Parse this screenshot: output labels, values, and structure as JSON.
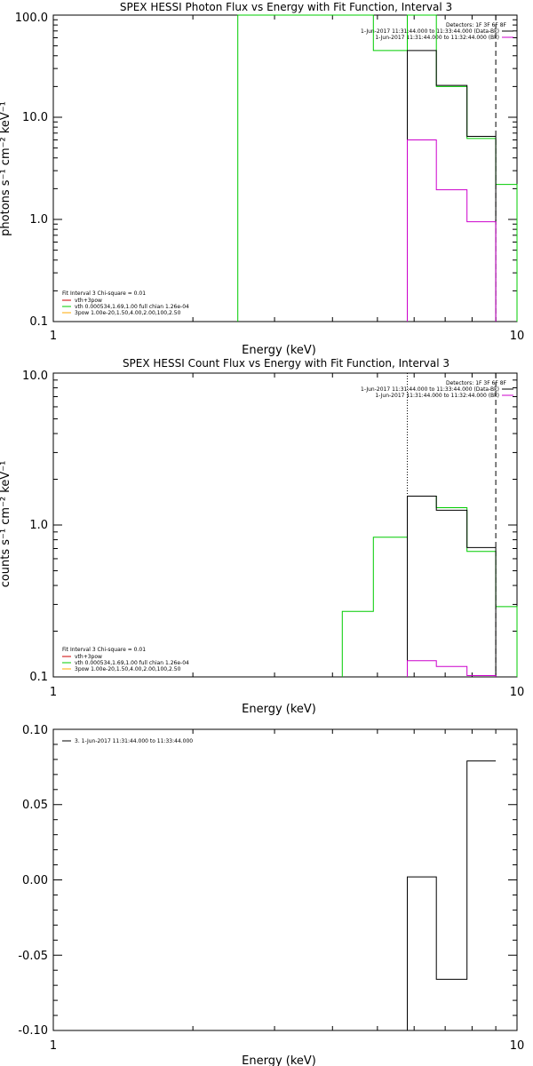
{
  "chart_data": [
    {
      "type": "line",
      "title": "SPEX HESSI Photon Flux vs Energy with Fit Function, Interval 3",
      "xlabel": "Energy (keV)",
      "ylabel": "photons s⁻¹ cm⁻² keV⁻¹",
      "xscale": "log",
      "yscale": "log",
      "xlim": [
        1,
        10
      ],
      "ylim": [
        0.1,
        100
      ],
      "x_ticks": [
        "1",
        "10"
      ],
      "y_ticks": [
        "0.1",
        "1.0",
        "10.0",
        "100.0"
      ],
      "top_right_text": [
        "Detectors: 1F 3F 6F 8F",
        "1-Jun-2017 11:31:44.000 to 11:33:44.000 (Data-Bk)",
        "1-Jun-2017 11:31:44.000 to 11:32:44.000 (Bk)"
      ],
      "legend_title": "Fit Interval 3   Chi-square = 0.01",
      "legend": [
        {
          "label": "vth+3pow",
          "color": "#cc0000"
        },
        {
          "label": "vth 0.000534,1.69,1.00  full chian 1.26e-04",
          "color": "#00cc00"
        },
        {
          "label": "3pow 1.00e-20,1.50,4.00,2.00,100,2.50",
          "color": "#ffaa00"
        }
      ],
      "vlines": [
        {
          "x": 5.8,
          "style": "dotted"
        },
        {
          "x": 9.0,
          "style": "dashed"
        }
      ],
      "series": [
        {
          "color": "#00cc00",
          "edges": [
            2.5,
            4.9,
            5.8,
            6.7,
            7.8,
            9.0,
            10.0
          ],
          "values": [
            100,
            45,
            100,
            20,
            6.2,
            2.2
          ]
        },
        {
          "color": "#000000",
          "edges": [
            5.8,
            6.7,
            7.8,
            9.0
          ],
          "values": [
            45,
            20.5,
            6.5
          ]
        },
        {
          "color": "#cc00cc",
          "edges": [
            5.8,
            6.7,
            7.8,
            9.0
          ],
          "values": [
            6.0,
            1.95,
            0.95
          ]
        }
      ]
    },
    {
      "type": "line",
      "title": "SPEX HESSI Count Flux vs Energy with Fit Function, Interval 3",
      "xlabel": "Energy (keV)",
      "ylabel": "counts s⁻¹ cm⁻² keV⁻¹",
      "xscale": "log",
      "yscale": "log",
      "xlim": [
        1,
        10
      ],
      "ylim": [
        0.1,
        10
      ],
      "x_ticks": [
        "1",
        "10"
      ],
      "y_ticks": [
        "0.1",
        "1.0",
        "10.0"
      ],
      "top_right_text": [
        "Detectors: 1F 3F 6F 8F",
        "1-Jun-2017 11:31:44.000 to 11:33:44.000 (Data-Bk)",
        "1-Jun-2017 11:31:44.000 to 11:32:44.000 (Bk)"
      ],
      "legend_title": "Fit Interval 3   Chi-square = 0.01",
      "legend": [
        {
          "label": "vth+3pow",
          "color": "#cc0000"
        },
        {
          "label": "vth 0.000534,1.69,1.00  full chian 1.26e-04",
          "color": "#00cc00"
        },
        {
          "label": "3pow 1.00e-20,1.50,4.00,2.00,100,2.50",
          "color": "#ffaa00"
        }
      ],
      "vlines": [
        {
          "x": 5.8,
          "style": "dotted"
        },
        {
          "x": 9.0,
          "style": "dashed"
        }
      ],
      "series": [
        {
          "color": "#00cc00",
          "edges": [
            4.2,
            4.9,
            5.8,
            6.7,
            7.8,
            9.0,
            10.0
          ],
          "values": [
            0.27,
            0.83,
            1.55,
            1.3,
            0.67,
            0.29
          ]
        },
        {
          "color": "#000000",
          "edges": [
            5.8,
            6.7,
            7.8,
            9.0
          ],
          "values": [
            1.55,
            1.25,
            0.71
          ]
        },
        {
          "color": "#cc00cc",
          "edges": [
            5.8,
            6.7,
            7.8,
            9.0
          ],
          "values": [
            0.128,
            0.117,
            0.102
          ]
        }
      ]
    },
    {
      "type": "line",
      "title": "",
      "xlabel": "Energy (keV)",
      "ylabel": "",
      "xscale": "log",
      "yscale": "linear",
      "xlim": [
        1,
        10
      ],
      "ylim": [
        -0.1,
        0.1
      ],
      "x_ticks": [
        "1",
        "10"
      ],
      "y_ticks": [
        "-0.10",
        "-0.05",
        "0.00",
        "0.05",
        "0.10"
      ],
      "legend": [
        {
          "label": "3.  1-Jun-2017 11:31:44.000 to 11:33:44.000",
          "color": "#000000"
        }
      ],
      "series": [
        {
          "color": "#000000",
          "edges": [
            5.8,
            6.7,
            7.8,
            9.0
          ],
          "values": [
            0.002,
            -0.066,
            0.079
          ]
        }
      ]
    }
  ]
}
